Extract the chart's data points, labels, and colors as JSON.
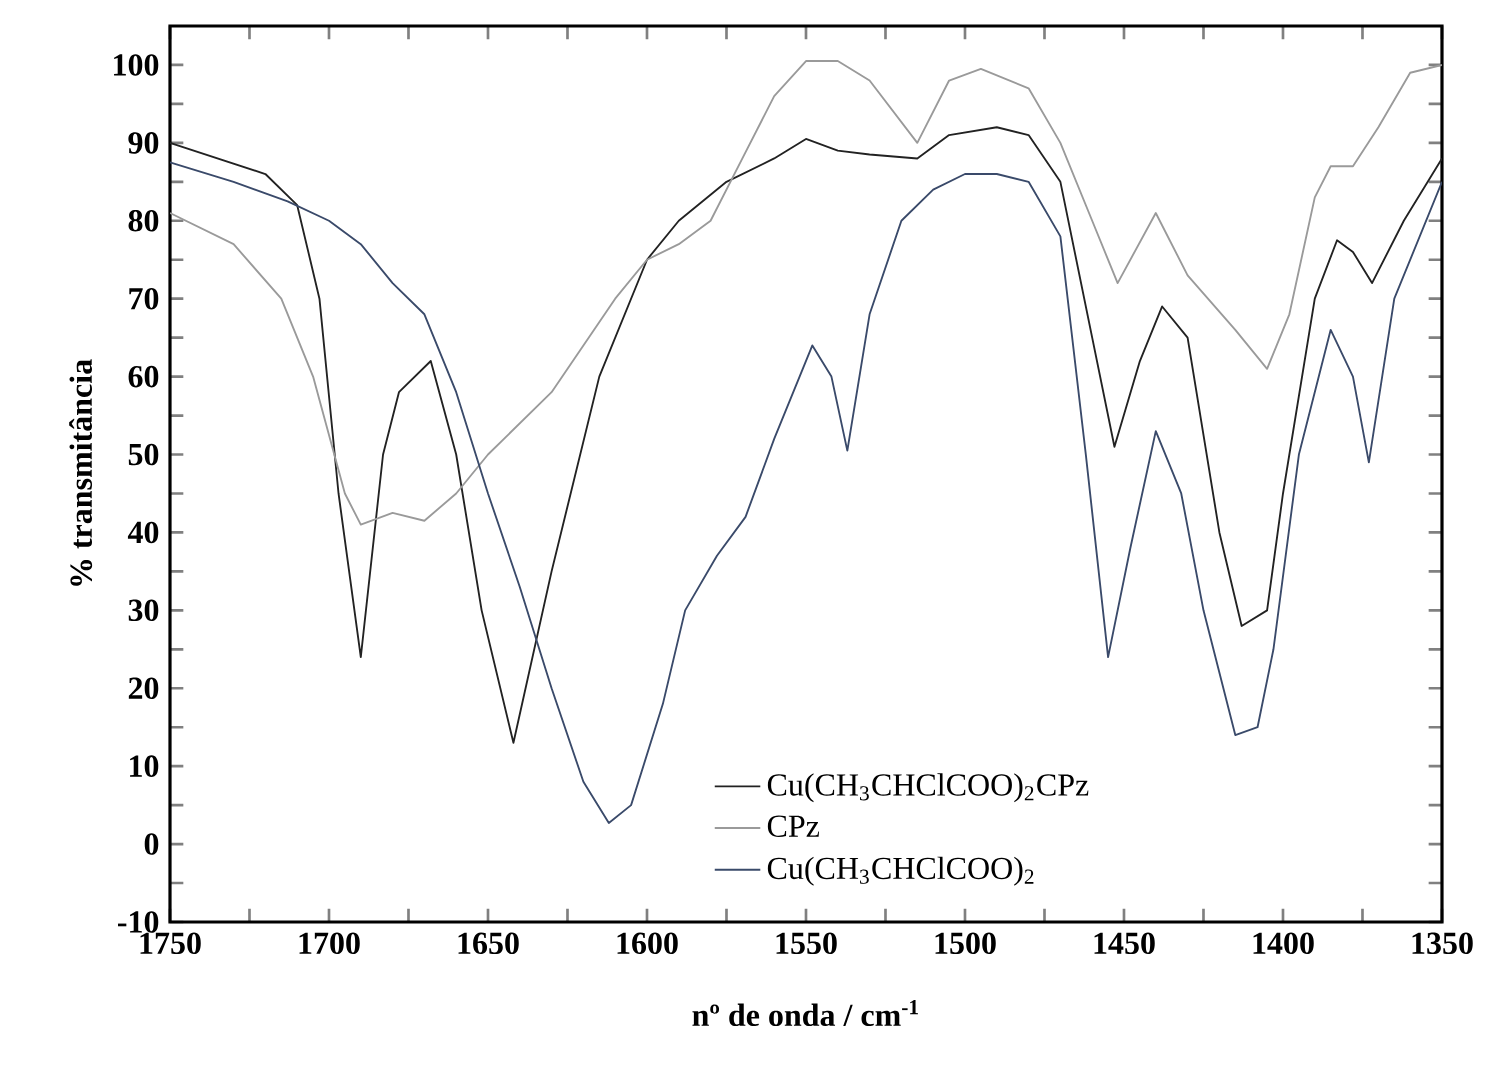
{
  "chart_data": {
    "type": "line",
    "xlabel": "nº de onda / cm$^{-1}$",
    "ylabel": "% transmitância",
    "xlim": [
      1750,
      1350
    ],
    "ylim": [
      -10,
      105
    ],
    "xticks": [
      1750,
      {
        "value": 1725,
        "label": null
      },
      1700,
      {
        "value": 1675,
        "label": null
      },
      1650,
      {
        "value": 1625,
        "label": null
      },
      1600,
      {
        "value": 1575,
        "label": null
      },
      1550,
      {
        "value": 1525,
        "label": null
      },
      1500,
      {
        "value": 1475,
        "label": null
      },
      1450,
      {
        "value": 1425,
        "label": null
      },
      1400,
      {
        "value": 1375,
        "label": null
      },
      1350
    ],
    "yticks": [
      -10,
      {
        "value": -5,
        "label": null
      },
      0,
      {
        "value": 5,
        "label": null
      },
      10,
      {
        "value": 15,
        "label": null
      },
      20,
      {
        "value": 25,
        "label": null
      },
      30,
      {
        "value": 35,
        "label": null
      },
      40,
      {
        "value": 45,
        "label": null
      },
      50,
      {
        "value": 55,
        "label": null
      },
      60,
      {
        "value": 65,
        "label": null
      },
      70,
      {
        "value": 75,
        "label": null
      },
      80,
      {
        "value": 85,
        "label": null
      },
      90,
      {
        "value": 95,
        "label": null
      },
      100
    ],
    "legend": "bottom right",
    "grid": false,
    "marker": "none",
    "line_style": "solid",
    "series": [
      {
        "name": "Cu(CH$_{3}$CHClCOO)$_{2}$CPz",
        "color": "#222222",
        "x": [
          1750,
          1720,
          1710,
          1703,
          1697,
          1690,
          1683,
          1678,
          1668,
          1660,
          1652,
          1642,
          1630,
          1615,
          1600,
          1590,
          1575,
          1560,
          1550,
          1540,
          1530,
          1515,
          1505,
          1490,
          1480,
          1470,
          1460,
          1453,
          1445,
          1438,
          1430,
          1420,
          1413,
          1405,
          1400,
          1390,
          1383,
          1378,
          1372,
          1362,
          1350
        ],
        "values": [
          90,
          86,
          82,
          70,
          45,
          24,
          50,
          58,
          62,
          50,
          30,
          13,
          35,
          60,
          75,
          80,
          85,
          88,
          90.5,
          89,
          88.5,
          88,
          91,
          92,
          91,
          85,
          65,
          51,
          62,
          69,
          65,
          40,
          28,
          30,
          45,
          70,
          77.5,
          76,
          72,
          80,
          88
        ]
      },
      {
        "name": "CPz",
        "color": "#9a9a9a",
        "x": [
          1750,
          1730,
          1715,
          1705,
          1695,
          1690,
          1680,
          1670,
          1660,
          1650,
          1630,
          1610,
          1600,
          1590,
          1580,
          1570,
          1560,
          1550,
          1540,
          1530,
          1515,
          1505,
          1495,
          1480,
          1470,
          1460,
          1452,
          1440,
          1430,
          1415,
          1405,
          1398,
          1390,
          1385,
          1378,
          1370,
          1360,
          1350
        ],
        "values": [
          81,
          77,
          70,
          60,
          45,
          41,
          42.5,
          41.5,
          45,
          50,
          58,
          70,
          75,
          77,
          80,
          88,
          96,
          100.5,
          100.5,
          98,
          90,
          98,
          99.5,
          97,
          90,
          80,
          72,
          81,
          73,
          66,
          61,
          68,
          83,
          87,
          87,
          92,
          99,
          100
        ]
      },
      {
        "name": "Cu(CH$_{3}$CHClCOO)$_{2}$",
        "color": "#3a4a6a",
        "x": [
          1750,
          1730,
          1713,
          1700,
          1690,
          1680,
          1670,
          1660,
          1650,
          1640,
          1630,
          1620,
          1612,
          1605,
          1595,
          1588,
          1578,
          1569,
          1560,
          1548,
          1542,
          1537,
          1530,
          1520,
          1510,
          1500,
          1490,
          1480,
          1470,
          1462,
          1455,
          1448,
          1440,
          1432,
          1425,
          1415,
          1408,
          1403,
          1395,
          1385,
          1378,
          1373,
          1365,
          1350
        ],
        "values": [
          87.5,
          85,
          82.5,
          80,
          77,
          72,
          68,
          58,
          45,
          33,
          20,
          8,
          2.7,
          5,
          18,
          30,
          37,
          42,
          52,
          64,
          60,
          50.5,
          68,
          80,
          84,
          86,
          86,
          85,
          78,
          50,
          24,
          38,
          53,
          45,
          30,
          14,
          15,
          25,
          50,
          66,
          60,
          49,
          70,
          85
        ]
      }
    ]
  }
}
